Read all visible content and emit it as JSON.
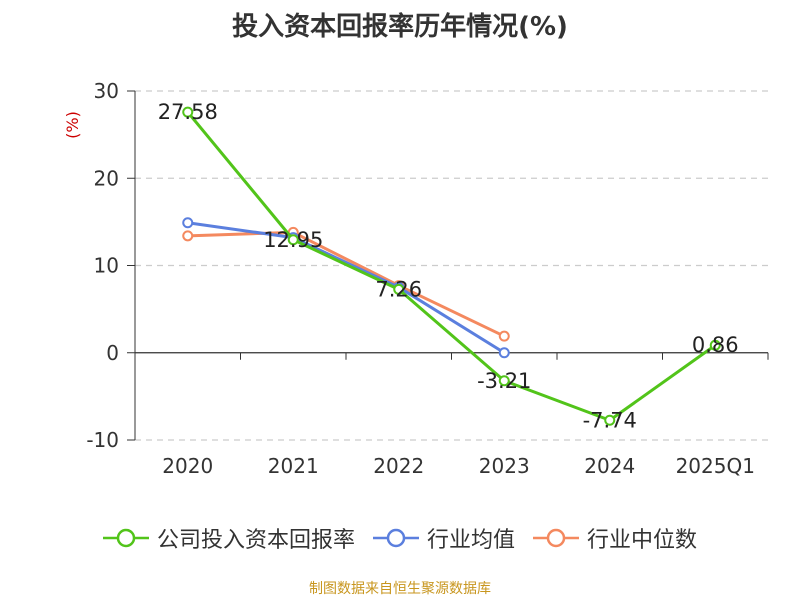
{
  "chart_data": {
    "type": "line",
    "title": "投入资本回报率历年情况(%)",
    "ylabel": "(%)",
    "categories": [
      "2020",
      "2021",
      "2022",
      "2023",
      "2024",
      "2025Q1"
    ],
    "ylim": [
      -10,
      30
    ],
    "yticks": [
      30,
      20,
      10,
      0,
      -10
    ],
    "grid": true,
    "legend_position": "bottom",
    "series": [
      {
        "name": "公司投入资本回报率",
        "color": "#52c41a",
        "values": [
          27.58,
          12.95,
          7.26,
          -3.21,
          -7.74,
          0.86
        ],
        "labels": [
          "27.58",
          "12.95",
          "7.26",
          "-3.21",
          "-7.74",
          "0.86"
        ]
      },
      {
        "name": "行业均值",
        "color": "#5b7fde",
        "values": [
          14.9,
          13.2,
          7.5,
          0.0,
          null,
          null
        ]
      },
      {
        "name": "行业中位数",
        "color": "#f4895f",
        "values": [
          13.4,
          13.8,
          7.7,
          1.9,
          null,
          null
        ]
      }
    ]
  },
  "ylabel_color": "#cc0000",
  "source": "制图数据来自恒生聚源数据库"
}
